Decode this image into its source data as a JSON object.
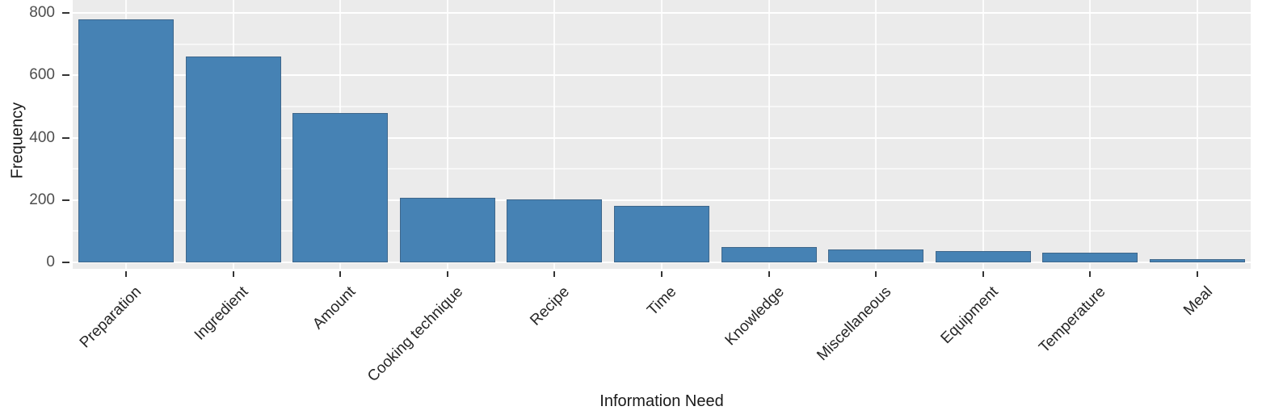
{
  "chart_data": {
    "type": "bar",
    "title": "",
    "xlabel": "Information Need",
    "ylabel": "Frequency",
    "categories": [
      "Preparation",
      "Ingredient",
      "Amount",
      "Cooking technique",
      "Recipe",
      "Time",
      "Knowledge",
      "Miscellaneous",
      "Equipment",
      "Temperature",
      "Meal"
    ],
    "values": [
      780,
      660,
      480,
      208,
      203,
      180,
      48,
      40,
      35,
      31,
      10
    ],
    "ylim": [
      0,
      800
    ],
    "yticks": [
      0,
      200,
      400,
      600,
      800
    ],
    "yticks_minor": [
      100,
      300,
      500,
      700
    ],
    "grid": "on",
    "legend": "none",
    "bar_color": "#4682B4",
    "bar_edge_color": "#3A5570",
    "panel_bg": "#EBEBEB",
    "grid_major_color": "#FFFFFF",
    "grid_minor_opacity": 0.6,
    "vgrid_opacity": 0.85,
    "tick_mark_color": "#333333",
    "axis_text_color": "#4D4D4D",
    "axis_title_color": "#1A1A1A"
  }
}
